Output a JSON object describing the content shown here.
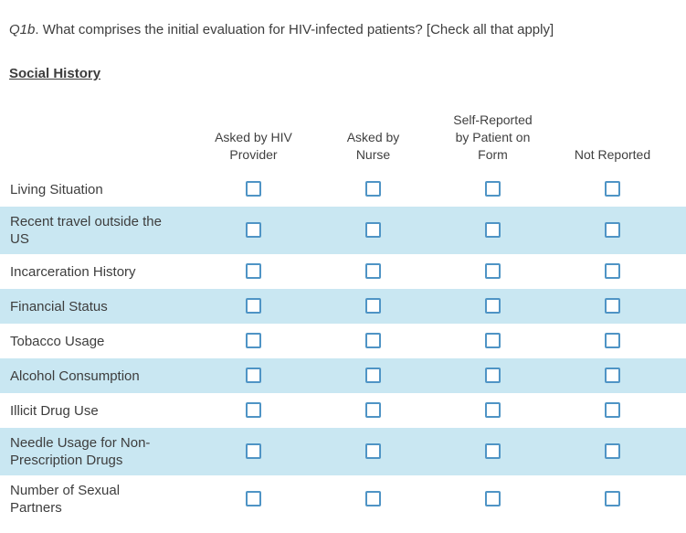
{
  "question": {
    "prefix": "Q1b",
    "text": ". What comprises the initial evaluation for HIV-infected patients? [Check all that apply]"
  },
  "section_title": "Social History",
  "colors": {
    "row_alt_background": "#c9e7f2",
    "checkbox_border": "#4f94c5",
    "text": "#404040"
  },
  "table": {
    "columns": [
      "Asked by HIV\nProvider",
      "Asked by\nNurse",
      "Self-Reported\nby Patient on\nForm",
      "Not Reported"
    ],
    "rows": [
      {
        "label": "Living Situation",
        "checkboxes": [
          false,
          false,
          false,
          false
        ]
      },
      {
        "label": "Recent travel outside the\nUS",
        "checkboxes": [
          false,
          false,
          false,
          false
        ]
      },
      {
        "label": "Incarceration History",
        "checkboxes": [
          false,
          false,
          false,
          false
        ]
      },
      {
        "label": "Financial Status",
        "checkboxes": [
          false,
          false,
          false,
          false
        ]
      },
      {
        "label": "Tobacco Usage",
        "checkboxes": [
          false,
          false,
          false,
          false
        ]
      },
      {
        "label": "Alcohol Consumption",
        "checkboxes": [
          false,
          false,
          false,
          false
        ]
      },
      {
        "label": "Illicit Drug Use",
        "checkboxes": [
          false,
          false,
          false,
          false
        ]
      },
      {
        "label": "Needle Usage for Non-\nPrescription Drugs",
        "checkboxes": [
          false,
          false,
          false,
          false
        ]
      },
      {
        "label": "Number of Sexual\nPartners",
        "checkboxes": [
          false,
          false,
          false,
          false
        ]
      }
    ]
  }
}
